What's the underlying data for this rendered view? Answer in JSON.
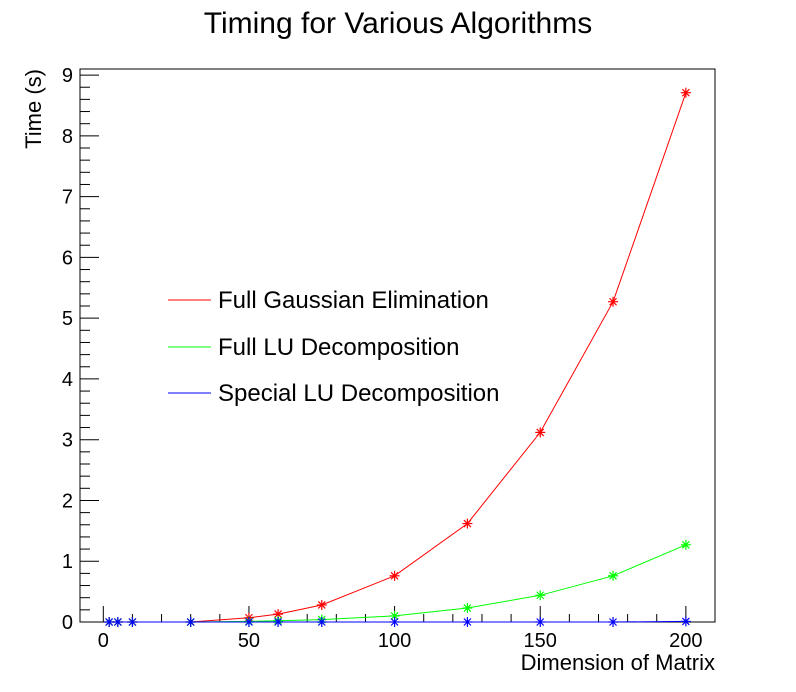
{
  "chart_data": {
    "type": "line",
    "title": "Timing for Various Algorithms",
    "xlabel": "Dimension of Matrix",
    "ylabel": "Time (s)",
    "xlim": [
      -8,
      210
    ],
    "ylim": [
      0,
      9.1
    ],
    "x_ticks": [
      0,
      50,
      100,
      150,
      200
    ],
    "y_ticks": [
      0,
      1,
      2,
      3,
      4,
      5,
      6,
      7,
      8,
      9
    ],
    "grid": false,
    "legend_position": "left-center",
    "marker": "asterisk",
    "series": [
      {
        "name": "Full Gaussian Elimination",
        "color": "#ff0000",
        "x": [
          2,
          5,
          10,
          30,
          50,
          60,
          75,
          100,
          125,
          150,
          175,
          200
        ],
        "y": [
          0,
          0,
          0,
          0,
          0.07,
          0.13,
          0.28,
          0.76,
          1.62,
          3.12,
          5.27,
          8.71
        ]
      },
      {
        "name": "Full LU Decomposition",
        "color": "#00ff00",
        "x": [
          2,
          5,
          10,
          30,
          50,
          60,
          75,
          100,
          125,
          150,
          175,
          200
        ],
        "y": [
          0,
          0,
          0,
          0,
          0.01,
          0.02,
          0.04,
          0.1,
          0.23,
          0.44,
          0.76,
          1.27
        ]
      },
      {
        "name": "Special LU Decomposition",
        "color": "#0000ff",
        "x": [
          2,
          5,
          10,
          30,
          50,
          60,
          75,
          100,
          125,
          150,
          175,
          200
        ],
        "y": [
          0,
          0,
          0,
          0,
          0,
          0,
          0,
          0,
          0,
          0,
          0,
          0.01
        ]
      }
    ]
  }
}
